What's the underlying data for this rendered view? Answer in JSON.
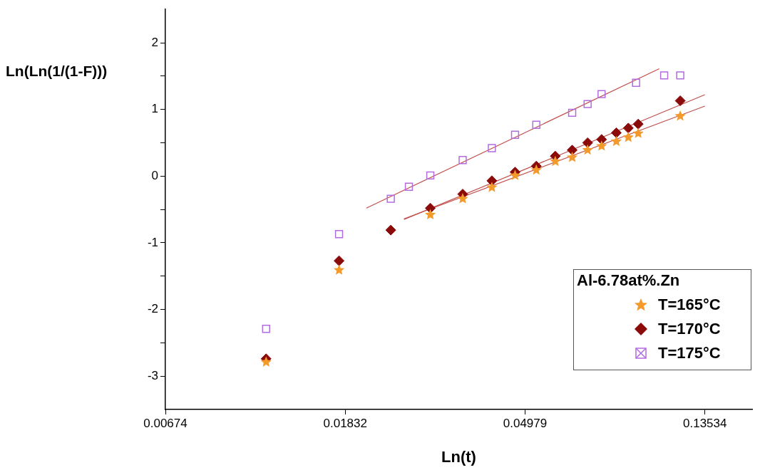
{
  "chart_data": {
    "type": "scatter",
    "xlabel": "Ln(t)",
    "ylabel": "Ln(Ln(1/(1-F)))",
    "legend_title": "Al-6.78at%.Zn",
    "legend": "bottom right",
    "grid": false,
    "log": "x",
    "xlim": [
      0.00674,
      0.176
    ],
    "xticks": [
      0.00674,
      0.01832,
      0.04979,
      0.13534
    ],
    "ylim": [
      -3.5,
      2.5
    ],
    "yticks": [
      -3,
      {
        "value": -2.5,
        "label": null
      },
      -2,
      {
        "value": -1.5,
        "label": null
      },
      -1,
      {
        "value": -0.5,
        "label": null
      },
      0,
      {
        "value": 0.5,
        "label": null
      },
      1,
      {
        "value": 1.5,
        "label": null
      },
      2
    ],
    "series": [
      {
        "name": "T=165°C",
        "type": "scatter",
        "marker": "star",
        "color": "#f39a2b",
        "x": [
          0.0118,
          0.0177,
          0.0294,
          0.0352,
          0.0414,
          0.0471,
          0.053,
          0.0589,
          0.0647,
          0.0705,
          0.0762,
          0.0827,
          0.0884,
          0.0934,
          0.118
        ],
        "values": [
          -2.79,
          -1.41,
          -0.58,
          -0.34,
          -0.17,
          0.01,
          0.09,
          0.22,
          0.28,
          0.39,
          0.45,
          0.52,
          0.58,
          0.64,
          0.9
        ]
      },
      {
        "name": "T=170°C",
        "type": "scatter",
        "marker": "diamond",
        "color": "#8b0a0a",
        "x": [
          0.0118,
          0.0177,
          0.0236,
          0.0294,
          0.0352,
          0.0414,
          0.0471,
          0.053,
          0.0589,
          0.0647,
          0.0705,
          0.0762,
          0.0827,
          0.0884,
          0.0934,
          0.118
        ],
        "values": [
          -2.74,
          -1.27,
          -0.81,
          -0.48,
          -0.27,
          -0.07,
          0.06,
          0.15,
          0.3,
          0.39,
          0.5,
          0.55,
          0.65,
          0.72,
          0.78,
          1.13
        ]
      },
      {
        "name": "T=175°C",
        "type": "scatter",
        "marker": "square",
        "color": "#b36be0",
        "x": [
          0.0118,
          0.0177,
          0.0236,
          0.0261,
          0.0294,
          0.0352,
          0.0414,
          0.0471,
          0.053,
          0.0647,
          0.0705,
          0.0762,
          0.0923,
          0.1079,
          0.118
        ],
        "values": [
          -2.29,
          -0.87,
          -0.34,
          -0.16,
          0.01,
          0.24,
          0.42,
          0.62,
          0.77,
          0.95,
          1.08,
          1.23,
          1.4,
          1.51,
          1.51
        ]
      },
      {
        "type": "line",
        "marker": "none",
        "color": "#c0504d",
        "x": [
          0.0206,
          0.105
        ],
        "values": [
          -0.48,
          1.61
        ]
      },
      {
        "type": "line",
        "marker": "none",
        "color": "#c0504d",
        "x": [
          0.0254,
          0.1353
        ],
        "values": [
          -0.65,
          1.22
        ]
      },
      {
        "type": "line",
        "marker": "none",
        "color": "#c0504d",
        "x": [
          0.0254,
          0.1353
        ],
        "values": [
          -0.64,
          1.05
        ]
      }
    ]
  }
}
